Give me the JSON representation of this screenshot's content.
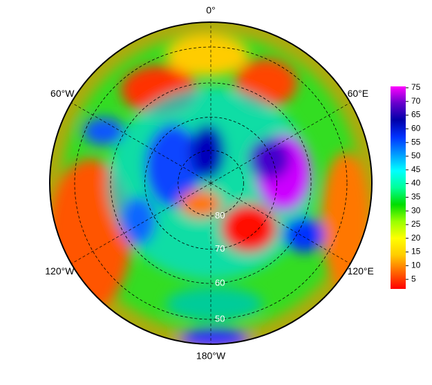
{
  "map": {
    "lon_ticks": [
      {
        "value": 0,
        "label": "0°"
      },
      {
        "value": 60,
        "label": "60°E"
      },
      {
        "value": 120,
        "label": "120°E"
      },
      {
        "value": 180,
        "label": "180°W"
      },
      {
        "value": -120,
        "label": "120°W"
      },
      {
        "value": -60,
        "label": "60°W"
      }
    ],
    "lat_ticks": [
      80,
      70,
      60,
      50
    ],
    "colorbar": {
      "lim": [
        1.5,
        75.5
      ],
      "ticks": [
        5,
        10,
        15,
        20,
        25,
        30,
        35,
        40,
        45,
        50,
        55,
        60,
        65,
        70,
        75
      ],
      "colors": [
        "#ff0000",
        "#ff6600",
        "#ffcc00",
        "#ffff00",
        "#99ff00",
        "#00dd00",
        "#00ff99",
        "#00ffff",
        "#0099ff",
        "#0033ff",
        "#0000aa",
        "#6600cc",
        "#ff00ff"
      ]
    }
  }
}
